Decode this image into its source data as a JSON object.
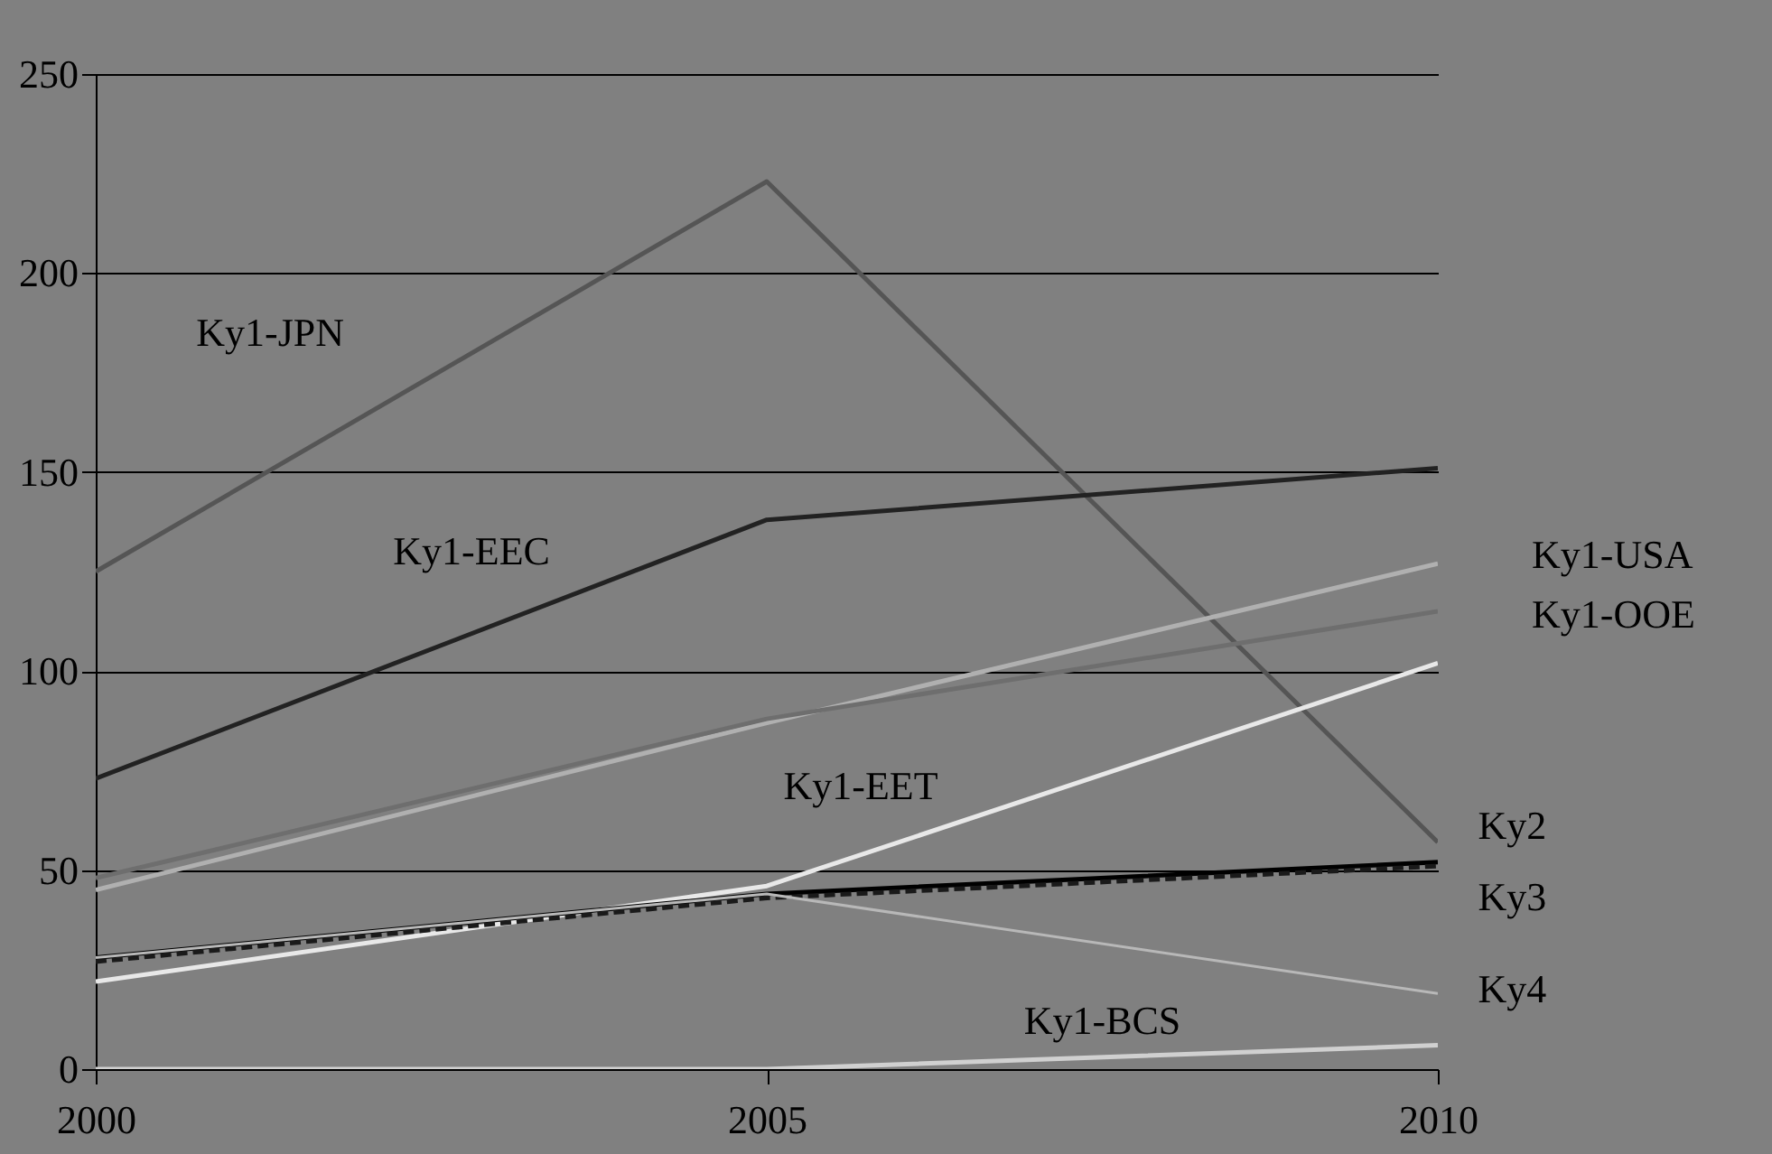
{
  "chart_data": {
    "type": "line",
    "x": [
      2000,
      2005,
      2010
    ],
    "xlim": [
      2000,
      2010
    ],
    "xticks": [
      2000,
      2005,
      2010
    ],
    "ylim": [
      0,
      250
    ],
    "yticks": [
      0,
      50,
      100,
      150,
      200,
      250
    ],
    "grid": "y",
    "marker": "none",
    "line_style": "solid",
    "series": [
      {
        "name": "Ky1-JPN",
        "color": "#555555",
        "values": [
          125,
          223,
          57
        ]
      },
      {
        "name": "Ky1-EEC",
        "color": "#222222",
        "values": [
          73,
          138,
          151
        ]
      },
      {
        "name": "Ky1-USA",
        "color": "#b0b0b0",
        "values": [
          45,
          87,
          127
        ]
      },
      {
        "name": "Ky1-OOE",
        "color": "#6e6e6e",
        "values": [
          48,
          88,
          115
        ]
      },
      {
        "name": "Ky1-EET",
        "color": "#e8e8e8",
        "values": [
          22,
          46,
          102
        ]
      },
      {
        "name": "Ky2",
        "color": "#000000",
        "values": [
          28,
          44,
          52
        ]
      },
      {
        "name": "Ky3",
        "color": "#1a1a1a",
        "line_style": "dashed",
        "values": [
          27,
          43,
          51
        ]
      },
      {
        "name": "Ky4",
        "color": "#b8b8b8",
        "values": [
          28,
          44,
          19
        ]
      },
      {
        "name": "Ky1-BCS",
        "color": "#d0d0d0",
        "values": [
          0,
          0,
          6
        ]
      }
    ]
  }
}
